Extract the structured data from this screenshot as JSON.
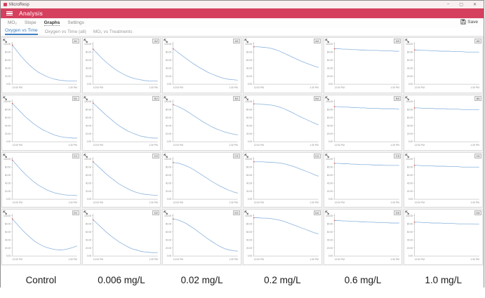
{
  "window": {
    "title": "MicroResp",
    "minimize": "–",
    "maximize": "▢",
    "close": "✕"
  },
  "app_header": {
    "title": "Analysis",
    "accent_color": "#d5405e"
  },
  "toolbar": {
    "save_label": "Save"
  },
  "main_tabs": [
    {
      "label": "MO₂",
      "active": false
    },
    {
      "label": "Slope",
      "active": false
    },
    {
      "label": "Graphs",
      "active": true
    },
    {
      "label": "Settings",
      "active": false
    }
  ],
  "sub_tabs": [
    {
      "label": "Oxygen vs Time",
      "active": true
    },
    {
      "label": "Oxygen vs Time (all)",
      "active": false
    },
    {
      "label": "MO₂ vs Treatments",
      "active": false
    }
  ],
  "treatment_labels": [
    "Control",
    "0.006 mg/L",
    "0.02 mg/L",
    "0.2 mg/L",
    "0.6 mg/L",
    "1.0 mg/L"
  ],
  "chart_data": {
    "type": "line",
    "title": "Oxygen vs Time",
    "line_color": "#8ab2dd",
    "start_marker_color": "#e06666",
    "axes": {
      "ylim": [
        0,
        105
      ],
      "yticks": [
        100,
        80,
        60,
        40,
        20,
        0
      ],
      "x_start_label": "12:00 PM",
      "x_end_label": "1:30 PM"
    },
    "charts": [
      {
        "well": "A1",
        "treatment": "Control",
        "y": [
          97,
          83,
          70,
          58,
          47,
          38,
          30,
          24,
          19,
          15,
          12,
          10,
          9,
          8,
          8,
          8
        ]
      },
      {
        "well": "A2",
        "treatment": "0.006 mg/L",
        "y": [
          87,
          76,
          65,
          55,
          46,
          38,
          31,
          25,
          20,
          16,
          13,
          11,
          9,
          8,
          8,
          8
        ]
      },
      {
        "well": "A3",
        "treatment": "0.02 mg/L",
        "y": [
          88,
          80,
          72,
          64,
          56,
          49,
          42,
          36,
          30,
          25,
          21,
          17,
          14,
          12,
          11,
          10
        ]
      },
      {
        "well": "A4",
        "treatment": "0.2 mg/L",
        "y": [
          93,
          93,
          92,
          91,
          89,
          86,
          82,
          77,
          72,
          67,
          62,
          57,
          53,
          49,
          45,
          42
        ]
      },
      {
        "well": "A5",
        "treatment": "0.6 mg/L",
        "y": [
          88,
          88,
          87,
          87,
          86,
          86,
          85,
          85,
          84,
          84,
          84,
          83,
          83,
          83,
          82,
          82
        ]
      },
      {
        "well": "A6",
        "treatment": "1.0 mg/L",
        "y": [
          85,
          85,
          84,
          84,
          83,
          83,
          82,
          82,
          82,
          81,
          81,
          81,
          80,
          80,
          80,
          80
        ]
      },
      {
        "well": "B1",
        "treatment": "Control",
        "y": [
          95,
          84,
          73,
          62,
          53,
          44,
          37,
          30,
          25,
          20,
          16,
          13,
          11,
          10,
          9,
          9
        ]
      },
      {
        "well": "B2",
        "treatment": "0.006 mg/L",
        "y": [
          96,
          86,
          76,
          66,
          57,
          48,
          40,
          33,
          27,
          22,
          18,
          14,
          12,
          10,
          9,
          9
        ]
      },
      {
        "well": "B3",
        "treatment": "0.02 mg/L",
        "y": [
          92,
          88,
          83,
          77,
          70,
          63,
          56,
          49,
          43,
          37,
          32,
          28,
          24,
          21,
          19,
          17
        ]
      },
      {
        "well": "B4",
        "treatment": "0.2 mg/L",
        "y": [
          94,
          94,
          93,
          92,
          91,
          89,
          86,
          82,
          77,
          72,
          66,
          61,
          56,
          51,
          46,
          42
        ]
      },
      {
        "well": "B5",
        "treatment": "0.6 mg/L",
        "y": [
          87,
          87,
          86,
          86,
          85,
          85,
          84,
          84,
          83,
          83,
          83,
          82,
          82,
          82,
          82,
          81
        ]
      },
      {
        "well": "B6",
        "treatment": "1.0 mg/L",
        "y": [
          84,
          84,
          83,
          83,
          83,
          82,
          82,
          82,
          81,
          81,
          81,
          80,
          80,
          80,
          80,
          80
        ]
      },
      {
        "well": "C1",
        "treatment": "Control",
        "y": [
          97,
          85,
          73,
          62,
          52,
          43,
          35,
          29,
          23,
          19,
          15,
          13,
          11,
          10,
          10,
          9
        ]
      },
      {
        "well": "C2",
        "treatment": "0.006 mg/L",
        "y": [
          93,
          83,
          73,
          63,
          54,
          46,
          38,
          32,
          26,
          21,
          17,
          14,
          12,
          11,
          10,
          10
        ]
      },
      {
        "well": "C3",
        "treatment": "0.02 mg/L",
        "y": [
          91,
          90,
          87,
          83,
          78,
          72,
          65,
          58,
          51,
          44,
          38,
          32,
          27,
          22,
          18,
          15
        ]
      },
      {
        "well": "C4",
        "treatment": "0.2 mg/L",
        "y": [
          93,
          93,
          93,
          92,
          92,
          91,
          90,
          88,
          85,
          82,
          78,
          74,
          70,
          66,
          61,
          57
        ]
      },
      {
        "well": "C5",
        "treatment": "0.6 mg/L",
        "y": [
          89,
          89,
          88,
          88,
          87,
          87,
          86,
          86,
          86,
          85,
          85,
          85,
          84,
          84,
          84,
          84
        ]
      },
      {
        "well": "C6",
        "treatment": "1.0 mg/L",
        "y": [
          84,
          84,
          83,
          83,
          83,
          82,
          82,
          82,
          81,
          81,
          81,
          80,
          80,
          80,
          80,
          80
        ]
      },
      {
        "well": "D1",
        "treatment": "Control",
        "y": [
          92,
          80,
          68,
          57,
          47,
          38,
          31,
          25,
          21,
          18,
          16,
          15,
          16,
          18,
          21,
          25
        ]
      },
      {
        "well": "D2",
        "treatment": "0.006 mg/L",
        "y": [
          90,
          80,
          70,
          60,
          51,
          43,
          35,
          29,
          23,
          18,
          15,
          12,
          10,
          9,
          8,
          8
        ]
      },
      {
        "well": "D3",
        "treatment": "0.02 mg/L",
        "y": [
          92,
          90,
          86,
          81,
          74,
          67,
          59,
          51,
          43,
          36,
          29,
          23,
          18,
          15,
          13,
          12
        ]
      },
      {
        "well": "D4",
        "treatment": "0.2 mg/L",
        "y": [
          95,
          95,
          94,
          94,
          93,
          91,
          89,
          86,
          82,
          78,
          74,
          70,
          66,
          62,
          58,
          55
        ]
      },
      {
        "well": "D5",
        "treatment": "0.6 mg/L",
        "y": [
          88,
          88,
          87,
          87,
          86,
          86,
          85,
          85,
          84,
          84,
          83,
          83,
          83,
          82,
          82,
          82
        ]
      },
      {
        "well": "D6",
        "treatment": "1.0 mg/L",
        "y": [
          84,
          84,
          83,
          83,
          82,
          82,
          82,
          81,
          81,
          81,
          80,
          80,
          80,
          80,
          79,
          79
        ]
      }
    ]
  }
}
